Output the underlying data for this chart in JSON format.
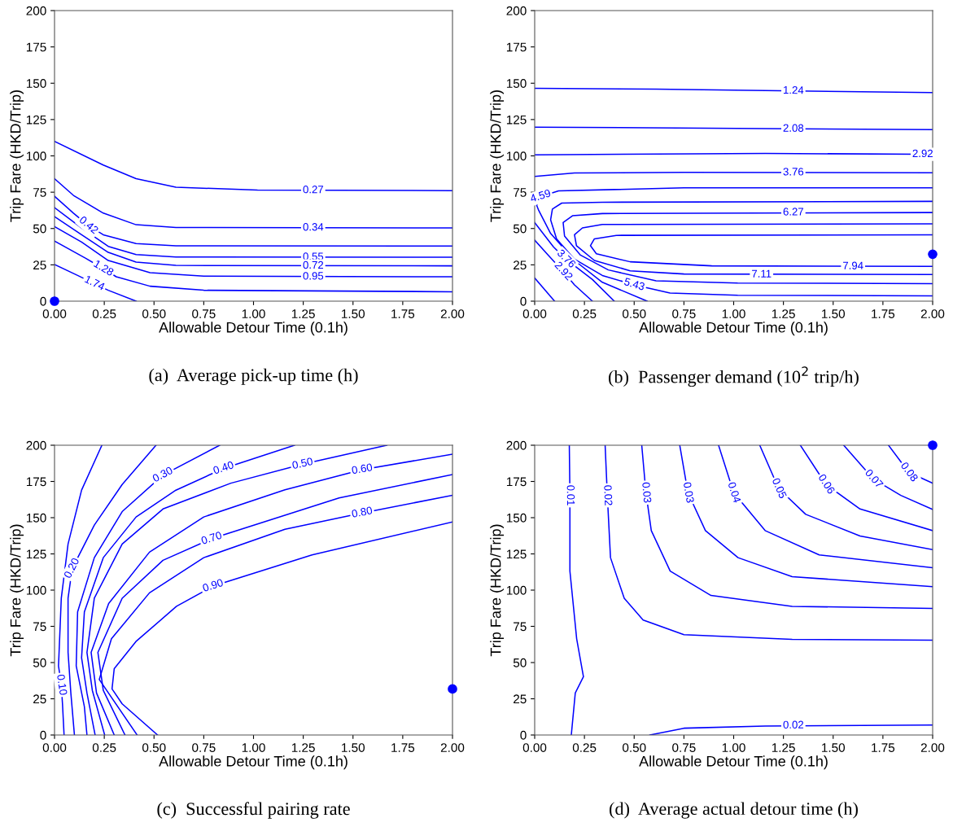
{
  "chart_data": [
    {
      "type": "line",
      "title": "(a)  Average pick-up time (h)",
      "xlabel": "Allowable Detour Time (0.1h)",
      "ylabel": "Trip Fare (HKD/Trip)",
      "xlim": [
        0,
        2
      ],
      "ylim": [
        0,
        200
      ],
      "xticks": [
        {
          "value": 0,
          "label": "0.00"
        },
        {
          "value": 0.25,
          "label": "0.25"
        },
        {
          "value": 0.5,
          "label": "0.50"
        },
        {
          "value": 0.75,
          "label": "0.75"
        },
        {
          "value": 1,
          "label": "1.00"
        },
        {
          "value": 1.25,
          "label": "1.25"
        },
        {
          "value": 1.5,
          "label": "1.50"
        },
        {
          "value": 1.75,
          "label": "1.75"
        },
        {
          "value": 2,
          "label": "2.00"
        }
      ],
      "yticks": [
        0,
        25,
        50,
        75,
        100,
        125,
        150,
        175,
        200
      ],
      "series": [
        {
          "color": "#0000ff",
          "x": [
            0,
            0.245,
            0.41,
            0.61,
            1.02,
            2
          ],
          "values": [
            110,
            93.7,
            84.3,
            78.4,
            76.5,
            76.1
          ]
        },
        {
          "color": "#0000ff",
          "x": [
            0,
            0.095,
            0.245,
            0.41,
            0.61,
            2
          ],
          "values": [
            84.3,
            72.8,
            60.6,
            52.6,
            50.7,
            50.4
          ]
        },
        {
          "color": "#0000ff",
          "x": [
            0,
            0.095,
            0.17,
            0.245,
            0.41,
            0.61,
            2
          ],
          "values": [
            72.2,
            60.6,
            52,
            45.7,
            39.6,
            38.1,
            37.9
          ]
        },
        {
          "color": "#0000ff",
          "x": [
            0,
            0.136,
            0.27,
            0.41,
            0.61,
            2
          ],
          "values": [
            64.4,
            50.4,
            37.7,
            32.1,
            30.4,
            30.2
          ]
        },
        {
          "color": "#0000ff",
          "x": [
            0,
            0.136,
            0.27,
            0.41,
            0.61,
            2
          ],
          "values": [
            58.2,
            45.7,
            33.6,
            26.9,
            24.6,
            24.3
          ]
        },
        {
          "color": "#0000ff",
          "x": [
            0,
            0.136,
            0.27,
            0.48,
            0.75,
            2
          ],
          "values": [
            51.3,
            40.7,
            28,
            19.6,
            17.2,
            16.8
          ]
        },
        {
          "color": "#0000ff",
          "x": [
            0,
            0.157,
            0.245,
            0.31,
            0.48,
            0.75,
            2
          ],
          "values": [
            41.4,
            29.5,
            22.4,
            16.8,
            10.3,
            7.5,
            6.5
          ]
        },
        {
          "color": "#0000ff",
          "x": [
            0,
            0.116,
            0.2,
            0.27,
            0.41
          ],
          "values": [
            25.2,
            17.7,
            12.1,
            7.5,
            0
          ]
        },
        {
          "type": "scatter",
          "color": "#0000ff",
          "x": [
            0
          ],
          "values": [
            0
          ]
        }
      ],
      "annotations": [
        {
          "text": "0.27",
          "x": 1.3,
          "y": 76.3
        },
        {
          "text": "0.34",
          "x": 1.3,
          "y": 50.5
        },
        {
          "text": "0.42",
          "x": 0.17,
          "y": 52
        },
        {
          "text": "0.55",
          "x": 1.3,
          "y": 30.2
        },
        {
          "text": "0.72",
          "x": 1.3,
          "y": 24.3
        },
        {
          "text": "0.95",
          "x": 1.3,
          "y": 16.8
        },
        {
          "text": "1.28",
          "x": 0.245,
          "y": 22.4
        },
        {
          "text": "1.74",
          "x": 0.2,
          "y": 12.1
        }
      ]
    },
    {
      "type": "line",
      "title": "(b)  Passenger demand (10$^{2}$ trip/h)",
      "xlabel": "Allowable Detour Time (0.1h)",
      "ylabel": "Trip Fare (HKD/Trip)",
      "xlim": [
        0,
        2
      ],
      "ylim": [
        0,
        200
      ],
      "xticks": [
        {
          "value": 0,
          "label": "0.00"
        },
        {
          "value": 0.25,
          "label": "0.25"
        },
        {
          "value": 0.5,
          "label": "0.50"
        },
        {
          "value": 0.75,
          "label": "0.75"
        },
        {
          "value": 1,
          "label": "1.00"
        },
        {
          "value": 1.25,
          "label": "1.25"
        },
        {
          "value": 1.5,
          "label": "1.50"
        },
        {
          "value": 1.75,
          "label": "1.75"
        },
        {
          "value": 2,
          "label": "2.00"
        }
      ],
      "yticks": [
        0,
        25,
        50,
        75,
        100,
        125,
        150,
        175,
        200
      ],
      "series": [
        {
          "color": "#0000ff",
          "x": [
            0,
            0.61,
            1.16,
            2
          ],
          "values": [
            146.5,
            145.9,
            145,
            143.5
          ]
        },
        {
          "color": "#0000ff",
          "x": [
            0,
            1.16,
            2
          ],
          "values": [
            119.8,
            118.8,
            118.1
          ]
        },
        {
          "color": "#0000ff",
          "x": [
            0,
            1.16,
            1.95,
            2
          ],
          "values": [
            100.7,
            101.7,
            101.1,
            101
          ]
        },
        {
          "color": "#0000ff",
          "x": [
            0,
            0.2,
            0.75,
            2
          ],
          "values": [
            85.8,
            88.2,
            88.6,
            88.4
          ]
        },
        {
          "color": "#0000ff",
          "x": [
            2,
            0.75,
            0.12,
            0.03,
            0.01,
            0.02,
            0.08,
            0.2,
            0.34,
            0.565
          ],
          "values": [
            78,
            78,
            75.9,
            72,
            66,
            62.5,
            46.6,
            28,
            13,
            0
          ]
        },
        {
          "color": "#0000ff",
          "x": [
            2,
            0.34,
            0.136,
            0.089,
            0.08,
            0.11,
            0.2,
            0.34,
            0.5,
            0.68,
            1.02,
            2
          ],
          "values": [
            68.7,
            68.1,
            67.5,
            63.4,
            56,
            42.9,
            28.9,
            17.7,
            11.2,
            5.6,
            4.1,
            3.7
          ]
        },
        {
          "color": "#0000ff",
          "x": [
            2,
            0.34,
            0.19,
            0.143,
            0.15,
            0.23,
            0.37,
            0.61,
            1.02,
            2
          ],
          "values": [
            61,
            60.3,
            58.8,
            54.1,
            44.8,
            31.7,
            21.5,
            14,
            12.5,
            12.1
          ]
        },
        {
          "color": "#0000ff",
          "x": [
            2,
            0.34,
            0.24,
            0.2,
            0.21,
            0.3,
            0.48,
            0.75,
            2
          ],
          "values": [
            53.2,
            52.8,
            50.4,
            45.7,
            38.2,
            28,
            20.9,
            18.7,
            18.3
          ]
        },
        {
          "color": "#0000ff",
          "x": [
            2,
            0.41,
            0.3,
            0.28,
            0.31,
            0.48,
            0.89,
            2
          ],
          "values": [
            45.7,
            45.3,
            42.9,
            38.2,
            32.6,
            27.1,
            24.3,
            23.9
          ]
        },
        {
          "color": "#0000ff",
          "x": [
            0,
            0.095,
            0.157,
            0.29,
            0.4
          ],
          "values": [
            54.1,
            37.3,
            28.9,
            14.9,
            0
          ]
        },
        {
          "color": "#0000ff",
          "x": [
            0,
            0.068,
            0.143,
            0.2,
            0.29
          ],
          "values": [
            42,
            31.7,
            20.5,
            11.2,
            0
          ]
        },
        {
          "color": "#0000ff",
          "x": [
            0,
            0.1
          ],
          "values": [
            15.9,
            0
          ]
        },
        {
          "type": "scatter",
          "color": "#0000ff",
          "x": [
            2
          ],
          "values": [
            32.3
          ]
        }
      ],
      "annotations": [
        {
          "text": "1.24",
          "x": 1.3,
          "y": 144.7
        },
        {
          "text": "2.08",
          "x": 1.3,
          "y": 118.6
        },
        {
          "text": "2.92",
          "x": 1.95,
          "y": 101.1
        },
        {
          "text": "3.76",
          "x": 1.3,
          "y": 88.5
        },
        {
          "text": "4.59",
          "x": 0.03,
          "y": 72
        },
        {
          "text": "6.27",
          "x": 1.3,
          "y": 61
        },
        {
          "text": "3.76",
          "x": 0.157,
          "y": 28.9
        },
        {
          "text": "2.92",
          "x": 0.143,
          "y": 20.5
        },
        {
          "text": "7.94",
          "x": 1.6,
          "y": 23.9
        },
        {
          "text": "7.11",
          "x": 1.14,
          "y": 18.3
        },
        {
          "text": "5.43",
          "x": 0.5,
          "y": 11.2
        }
      ]
    },
    {
      "type": "line",
      "title": "(c)  Successful pairing rate",
      "xlabel": "Allowable Detour Time (0.1h)",
      "ylabel": "Trip Fare (HKD/Trip)",
      "xlim": [
        0,
        2
      ],
      "ylim": [
        0,
        200
      ],
      "xticks": [
        {
          "value": 0,
          "label": "0.00"
        },
        {
          "value": 0.25,
          "label": "0.25"
        },
        {
          "value": 0.5,
          "label": "0.50"
        },
        {
          "value": 0.75,
          "label": "0.75"
        },
        {
          "value": 1,
          "label": "1.00"
        },
        {
          "value": 1.25,
          "label": "1.25"
        },
        {
          "value": 1.5,
          "label": "1.50"
        },
        {
          "value": 1.75,
          "label": "1.75"
        },
        {
          "value": 2,
          "label": "2.00"
        }
      ],
      "yticks": [
        0,
        25,
        50,
        75,
        100,
        125,
        150,
        175,
        200
      ],
      "series": [
        {
          "color": "#0000ff",
          "x": [
            0.238,
            0.136,
            0.068,
            0.034,
            0.02,
            0.034,
            0.04,
            0.048
          ],
          "values": [
            200,
            169,
            131.8,
            94.4,
            47.7,
            34.6,
            21.5,
            0
          ]
        },
        {
          "color": "#0000ff",
          "x": [
            0.51,
            0.34,
            0.2,
            0.089,
            0.068,
            0.068,
            0.082,
            0.1
          ],
          "values": [
            200,
            172.9,
            144.9,
            115,
            94.4,
            57,
            29,
            0
          ]
        },
        {
          "color": "#0000ff",
          "x": [
            0.83,
            0.545,
            0.34,
            0.2,
            0.116,
            0.109,
            0.15,
            0.163
          ],
          "values": [
            200,
            179.4,
            154.2,
            122.4,
            85,
            47.7,
            19.6,
            0
          ]
        },
        {
          "color": "#0000ff",
          "x": [
            1.206,
            0.85,
            0.61,
            0.41,
            0.245,
            0.15,
            0.136,
            0.163,
            0.204
          ],
          "values": [
            200,
            184,
            169,
            150.5,
            122.4,
            85,
            53.3,
            29,
            0
          ]
        },
        {
          "color": "#0000ff",
          "x": [
            1.67,
            1.247,
            0.886,
            0.545,
            0.34,
            0.2,
            0.163,
            0.19,
            0.252
          ],
          "values": [
            200,
            187,
            173.8,
            156,
            131.8,
            94.4,
            57,
            30.8,
            0
          ]
        },
        {
          "color": "#0000ff",
          "x": [
            2,
            1.546,
            1.158,
            0.75,
            0.477,
            0.272,
            0.184,
            0.211,
            0.3
          ],
          "values": [
            193.8,
            183.2,
            169.2,
            150.5,
            126.2,
            90.7,
            57,
            29,
            0
          ]
        },
        {
          "color": "#0000ff",
          "x": [
            2,
            1.43,
            0.79,
            0.545,
            0.34,
            0.218,
            0.245,
            0.354
          ],
          "values": [
            179.8,
            163.6,
            135.5,
            120.6,
            94.4,
            57,
            30.8,
            0
          ]
        },
        {
          "color": "#0000ff",
          "x": [
            2,
            1.546,
            1.158,
            0.75,
            0.477,
            0.286,
            0.225,
            0.415
          ],
          "values": [
            165.4,
            153.3,
            142,
            122.4,
            98.1,
            66.4,
            38.3,
            0
          ]
        },
        {
          "color": "#0000ff",
          "x": [
            2,
            1.294,
            0.797,
            0.613,
            0.409,
            0.3,
            0.289,
            0.34,
            0.518
          ],
          "values": [
            147.1,
            124.3,
            102.8,
            88.8,
            64.5,
            45.8,
            31.8,
            21.5,
            0
          ]
        },
        {
          "type": "scatter",
          "color": "#0000ff",
          "x": [
            2
          ],
          "values": [
            31.8
          ]
        }
      ],
      "annotations": [
        {
          "text": "0.10",
          "x": 0.034,
          "y": 34.6
        },
        {
          "text": "0.20",
          "x": 0.089,
          "y": 115
        },
        {
          "text": "0.30",
          "x": 0.545,
          "y": 179.4
        },
        {
          "text": "0.40",
          "x": 0.85,
          "y": 184
        },
        {
          "text": "0.50",
          "x": 1.247,
          "y": 187
        },
        {
          "text": "0.60",
          "x": 1.546,
          "y": 183.2
        },
        {
          "text": "0.70",
          "x": 0.79,
          "y": 135.5
        },
        {
          "text": "0.80",
          "x": 1.546,
          "y": 153.3
        },
        {
          "text": "0.90",
          "x": 0.797,
          "y": 102.8
        }
      ]
    },
    {
      "type": "line",
      "title": "(d)  Average actual detour time (h)",
      "xlabel": "Allowable Detour Time (0.1h)",
      "ylabel": "Trip Fare (HKD/Trip)",
      "xlim": [
        0,
        2
      ],
      "ylim": [
        0,
        200
      ],
      "xticks": [
        {
          "value": 0,
          "label": "0.00"
        },
        {
          "value": 0.25,
          "label": "0.25"
        },
        {
          "value": 0.5,
          "label": "0.50"
        },
        {
          "value": 0.75,
          "label": "0.75"
        },
        {
          "value": 1,
          "label": "1.00"
        },
        {
          "value": 1.25,
          "label": "1.25"
        },
        {
          "value": 1.5,
          "label": "1.50"
        },
        {
          "value": 1.75,
          "label": "1.75"
        },
        {
          "value": 2,
          "label": "2.00"
        }
      ],
      "yticks": [
        0,
        25,
        50,
        75,
        100,
        125,
        150,
        175,
        200
      ],
      "series": [
        {
          "color": "#0000ff",
          "x": [
            0.174,
            0.177,
            0.177,
            0.211,
            0.245,
            0.204,
            0.184
          ],
          "values": [
            200,
            165.4,
            113.1,
            66.4,
            40.2,
            29,
            0
          ]
        },
        {
          "color": "#0000ff",
          "x": [
            0.354,
            0.365,
            0.381,
            0.45,
            0.545,
            0.75,
            1.294,
            2
          ],
          "values": [
            200,
            165.4,
            122.4,
            94.4,
            79.4,
            69.2,
            66,
            65.4
          ]
        },
        {
          "color": "#0000ff",
          "x": [
            0.538,
            0.559,
            0.586,
            0.681,
            0.886,
            1.294,
            2
          ],
          "values": [
            200,
            167.3,
            141.1,
            113.1,
            96.3,
            88.8,
            87.3
          ]
        },
        {
          "color": "#0000ff",
          "x": [
            0.729,
            0.77,
            0.858,
            1.022,
            1.294,
            2
          ],
          "values": [
            200,
            167.3,
            141.1,
            122.4,
            109.3,
            102.4
          ]
        },
        {
          "color": "#0000ff",
          "x": [
            0.924,
            1.0,
            1.158,
            1.43,
            2
          ],
          "values": [
            200,
            167.3,
            141.1,
            124.3,
            115.5
          ]
        },
        {
          "color": "#0000ff",
          "x": [
            1.131,
            1.226,
            1.362,
            1.635,
            2
          ],
          "values": [
            200,
            170.1,
            152.3,
            137.4,
            128
          ]
        },
        {
          "color": "#0000ff",
          "x": [
            1.335,
            1.464,
            1.635,
            2
          ],
          "values": [
            200,
            172.9,
            156,
            141.1
          ]
        },
        {
          "color": "#0000ff",
          "x": [
            1.553,
            1.703,
            1.84,
            2
          ],
          "values": [
            200,
            176.6,
            165.4,
            155.7
          ]
        },
        {
          "color": "#0000ff",
          "x": [
            1.778,
            1.88,
            2
          ],
          "values": [
            200,
            181.3,
            173.8
          ]
        },
        {
          "color": "#0000ff",
          "x": [
            0.579,
            0.75,
            1.158,
            2
          ],
          "values": [
            0,
            4.7,
            6.2,
            6.9
          ]
        },
        {
          "type": "scatter",
          "color": "#0000ff",
          "x": [
            2
          ],
          "values": [
            200
          ]
        }
      ],
      "annotations": [
        {
          "text": "0.01",
          "x": 0.177,
          "y": 165.4
        },
        {
          "text": "0.02",
          "x": 0.365,
          "y": 165.4
        },
        {
          "text": "0.03",
          "x": 0.559,
          "y": 167.3
        },
        {
          "text": "0.03",
          "x": 0.77,
          "y": 167.3
        },
        {
          "text": "0.04",
          "x": 1.0,
          "y": 167.3
        },
        {
          "text": "0.05",
          "x": 1.226,
          "y": 170.1
        },
        {
          "text": "0.06",
          "x": 1.464,
          "y": 172.9
        },
        {
          "text": "0.07",
          "x": 1.703,
          "y": 176.6
        },
        {
          "text": "0.08",
          "x": 1.88,
          "y": 181.3
        },
        {
          "text": "0.02",
          "x": 1.3,
          "y": 6.5
        }
      ]
    }
  ]
}
